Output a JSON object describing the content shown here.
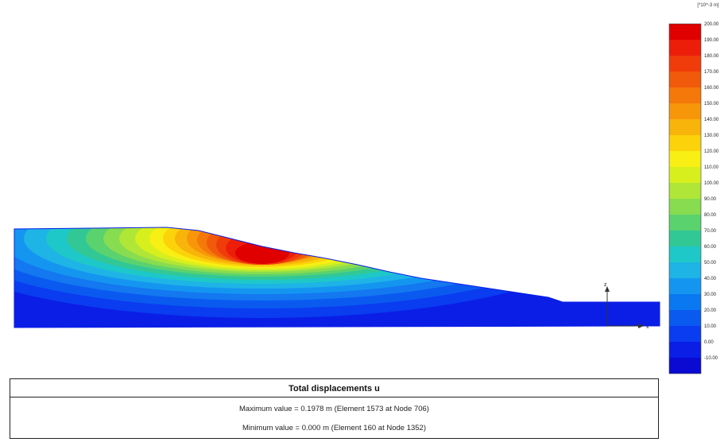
{
  "legend": {
    "unit": "[*10^-3 m]",
    "colors": [
      "#e00000",
      "#ec1e0a",
      "#f03c0a",
      "#f05a0a",
      "#f4780a",
      "#f8960a",
      "#f8b40a",
      "#fcd20a",
      "#f8ef14",
      "#d8ef1e",
      "#b0e637",
      "#88dc50",
      "#5ad26e",
      "#32c896",
      "#1ec8c8",
      "#1eb4e6",
      "#1496f0",
      "#0a78f0",
      "#0a5af0",
      "#0a3cf0",
      "#0a1ee6",
      "#0a0ad2"
    ],
    "labels": [
      "200.00",
      "190.00",
      "180.00",
      "170.00",
      "160.00",
      "150.00",
      "140.00",
      "130.00",
      "120.00",
      "110.00",
      "100.00",
      "90.00",
      "80.00",
      "70.00",
      "60.00",
      "50.00",
      "40.00",
      "30.00",
      "20.00",
      "10.00",
      "0.00",
      "-10.00"
    ]
  },
  "axes": {
    "z_label": "z",
    "x_label": "x"
  },
  "info": {
    "title": "Total displacements u",
    "max_line": "Maximum value = 0.1978 m (Element 1573 at Node 706)",
    "min_line": "Minimum value = 0.000 m (Element 160 at Node 1352)"
  },
  "colors": {
    "slope_base": "#0a1ee6",
    "border": "#222222"
  }
}
